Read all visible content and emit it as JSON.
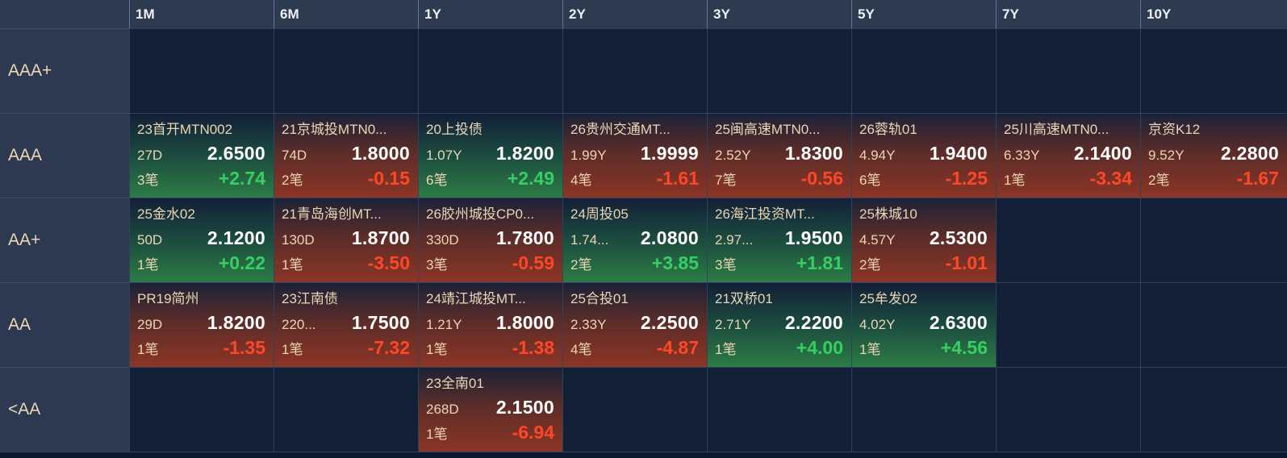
{
  "grid": {
    "columns": [
      "1M",
      "6M",
      "1Y",
      "2Y",
      "3Y",
      "5Y",
      "7Y",
      "10Y"
    ],
    "rows": [
      {
        "label": "AAA+",
        "cells": [
          null,
          null,
          null,
          null,
          null,
          null,
          null,
          null
        ]
      },
      {
        "label": "AAA",
        "cells": [
          {
            "name": "23首开MTN002",
            "term": "27D",
            "value": "2.6500",
            "count": "3笔",
            "change": "+2.74",
            "trend": "up"
          },
          {
            "name": "21京城投MTN0...",
            "term": "74D",
            "value": "1.8000",
            "count": "2笔",
            "change": "-0.15",
            "trend": "down"
          },
          {
            "name": "20上投债",
            "term": "1.07Y",
            "value": "1.8200",
            "count": "6笔",
            "change": "+2.49",
            "trend": "up"
          },
          {
            "name": "26贵州交通MT...",
            "term": "1.99Y",
            "value": "1.9999",
            "count": "4笔",
            "change": "-1.61",
            "trend": "down"
          },
          {
            "name": "25闽高速MTN0...",
            "term": "2.52Y",
            "value": "1.8300",
            "count": "7笔",
            "change": "-0.56",
            "trend": "down"
          },
          {
            "name": "26蓉轨01",
            "term": "4.94Y",
            "value": "1.9400",
            "count": "6笔",
            "change": "-1.25",
            "trend": "down"
          },
          {
            "name": "25川高速MTN0...",
            "term": "6.33Y",
            "value": "2.1400",
            "count": "1笔",
            "change": "-3.34",
            "trend": "down"
          },
          {
            "name": "京资K12",
            "term": "9.52Y",
            "value": "2.2800",
            "count": "2笔",
            "change": "-1.67",
            "trend": "down"
          }
        ]
      },
      {
        "label": "AA+",
        "cells": [
          {
            "name": "25金水02",
            "term": "50D",
            "value": "2.1200",
            "count": "1笔",
            "change": "+0.22",
            "trend": "up"
          },
          {
            "name": "21青岛海创MT...",
            "term": "130D",
            "value": "1.8700",
            "count": "1笔",
            "change": "-3.50",
            "trend": "down"
          },
          {
            "name": "26胶州城投CP0...",
            "term": "330D",
            "value": "1.7800",
            "count": "3笔",
            "change": "-0.59",
            "trend": "down"
          },
          {
            "name": "24周投05",
            "term": "1.74...",
            "value": "2.0800",
            "count": "2笔",
            "change": "+3.85",
            "trend": "up"
          },
          {
            "name": "26海江投资MT...",
            "term": "2.97...",
            "value": "1.9500",
            "count": "3笔",
            "change": "+1.81",
            "trend": "up"
          },
          {
            "name": "25株城10",
            "term": "4.57Y",
            "value": "2.5300",
            "count": "2笔",
            "change": "-1.01",
            "trend": "down"
          },
          null,
          null
        ]
      },
      {
        "label": "AA",
        "cells": [
          {
            "name": "PR19简州",
            "term": "29D",
            "value": "1.8200",
            "count": "1笔",
            "change": "-1.35",
            "trend": "down"
          },
          {
            "name": "23江南债",
            "term": "220...",
            "value": "1.7500",
            "count": "1笔",
            "change": "-7.32",
            "trend": "down"
          },
          {
            "name": "24靖江城投MT...",
            "term": "1.21Y",
            "value": "1.8000",
            "count": "1笔",
            "change": "-1.38",
            "trend": "down"
          },
          {
            "name": "25合投01",
            "term": "2.33Y",
            "value": "2.2500",
            "count": "4笔",
            "change": "-4.87",
            "trend": "down"
          },
          {
            "name": "21双桥01",
            "term": "2.71Y",
            "value": "2.2200",
            "count": "1笔",
            "change": "+4.00",
            "trend": "up"
          },
          {
            "name": "25牟发02",
            "term": "4.02Y",
            "value": "2.6300",
            "count": "1笔",
            "change": "+4.56",
            "trend": "up"
          },
          null,
          null
        ]
      },
      {
        "label": "<AA",
        "cells": [
          null,
          null,
          {
            "name": "23全南01",
            "term": "268D",
            "value": "2.1500",
            "count": "1笔",
            "change": "-6.94",
            "trend": "down"
          },
          null,
          null,
          null,
          null,
          null
        ]
      }
    ]
  },
  "colors": {
    "background": "#121f36",
    "header_bg": "#2e3a50",
    "row_label_bg": "#2c3950",
    "grid_line": "#33425c",
    "label_text": "#ead6b4",
    "value_text": "#ffffff",
    "positive": "#35d061",
    "negative": "#ff4727",
    "up_gradient_bottom": "#2c7c46",
    "down_gradient_bottom": "#8c3526"
  }
}
